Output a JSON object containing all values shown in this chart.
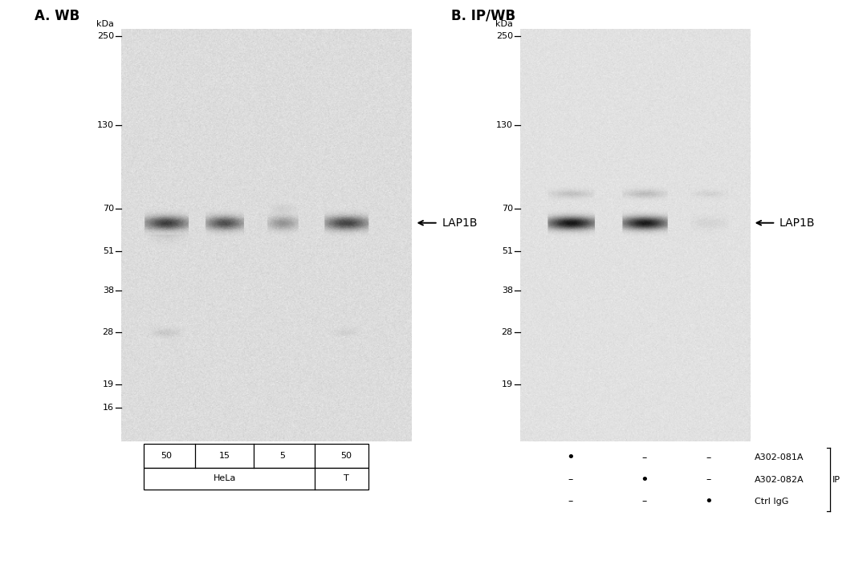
{
  "white_bg": "#ffffff",
  "gel_bg_A": 0.86,
  "gel_bg_B": 0.88,
  "gel_noise_A": 0.018,
  "gel_noise_B": 0.014,
  "panel_A_title": "A. WB",
  "panel_B_title": "B. IP/WB",
  "kda_label": "kDa",
  "mw_markers_A": [
    250,
    130,
    70,
    51,
    38,
    28,
    19,
    16
  ],
  "mw_markers_B": [
    250,
    130,
    70,
    51,
    38,
    28,
    19
  ],
  "lap1b_label": "LAP1B",
  "lap1b_mw": 63,
  "lane_labels_A": [
    "50",
    "15",
    "5",
    "50"
  ],
  "hela_label": "HeLa",
  "T_label": "T",
  "ip_rows": [
    "A302-081A",
    "A302-082A",
    "Ctrl IgG"
  ],
  "ip_label": "IP",
  "ip_dots": [
    [
      true,
      false,
      false
    ],
    [
      false,
      true,
      false
    ],
    [
      false,
      false,
      true
    ]
  ],
  "font_size_title": 12,
  "font_size_kda": 8,
  "font_size_mw": 8,
  "font_size_lane": 8,
  "font_size_lap1b": 10,
  "font_size_ip": 8
}
